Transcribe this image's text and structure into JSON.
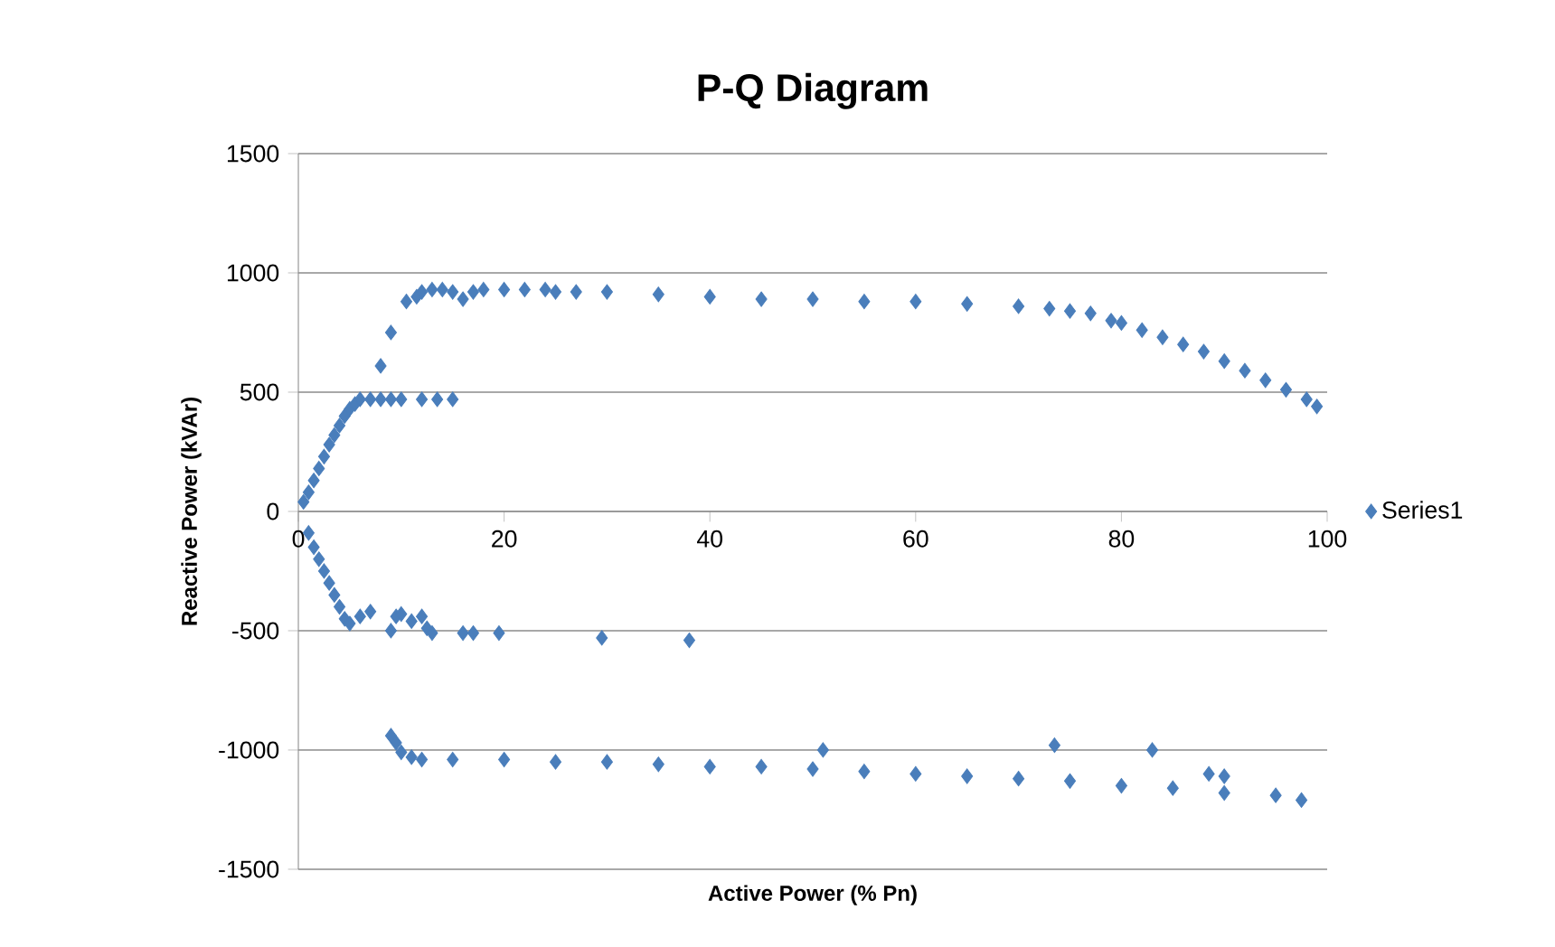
{
  "chart_data": {
    "type": "scatter",
    "title": "P-Q Diagram",
    "xlabel": "Active Power (% Pn)",
    "ylabel": "Reactive Power (kVAr)",
    "xlim": [
      0,
      100
    ],
    "ylim": [
      -1500,
      1500
    ],
    "xticks": [
      0,
      20,
      40,
      60,
      80,
      100
    ],
    "yticks": [
      -1500,
      -1000,
      -500,
      0,
      500,
      1000,
      1500
    ],
    "grid": "y",
    "legend": "right",
    "marker": "diamond",
    "series": [
      {
        "name": "Series1",
        "color": "#4a7ebb",
        "x": [
          0.5,
          1,
          1.5,
          2,
          2.5,
          3,
          3.5,
          4,
          4.5,
          5,
          5.5,
          6,
          7,
          8,
          9,
          10,
          12,
          13.5,
          15,
          8,
          9,
          10.5,
          11.5,
          12,
          13,
          14,
          15,
          16,
          17,
          18,
          20,
          22,
          24,
          25,
          27,
          30,
          35,
          40,
          45,
          50,
          55,
          60,
          65,
          70,
          73,
          75,
          77,
          79,
          80,
          82,
          84,
          86,
          88,
          90,
          92,
          94,
          96,
          98,
          99,
          1,
          1.5,
          2,
          2.5,
          3,
          3.5,
          4,
          4.5,
          5,
          6,
          7,
          9,
          9.5,
          10,
          11,
          12,
          12.5,
          13,
          16,
          17,
          19.5,
          29.5,
          38,
          9,
          9.5,
          10,
          11,
          12,
          15,
          20,
          25,
          30,
          35,
          40,
          45,
          50,
          51,
          55,
          60,
          65,
          70,
          73.5,
          75,
          80,
          83,
          85,
          88.5,
          90,
          90,
          95,
          97.5
        ],
        "values": [
          40,
          80,
          130,
          180,
          230,
          280,
          320,
          360,
          400,
          430,
          450,
          470,
          470,
          470,
          470,
          470,
          470,
          470,
          470,
          610,
          750,
          880,
          900,
          920,
          930,
          930,
          920,
          890,
          920,
          930,
          930,
          930,
          930,
          920,
          920,
          920,
          910,
          900,
          890,
          890,
          880,
          880,
          870,
          860,
          850,
          840,
          830,
          800,
          790,
          760,
          730,
          700,
          670,
          630,
          590,
          550,
          510,
          470,
          440,
          -90,
          -150,
          -200,
          -250,
          -300,
          -350,
          -400,
          -450,
          -470,
          -440,
          -420,
          -500,
          -440,
          -430,
          -460,
          -440,
          -490,
          -510,
          -510,
          -510,
          -510,
          -530,
          -540,
          -940,
          -970,
          -1010,
          -1030,
          -1040,
          -1040,
          -1040,
          -1050,
          -1050,
          -1060,
          -1070,
          -1070,
          -1080,
          -1000,
          -1090,
          -1100,
          -1110,
          -1120,
          -980,
          -1130,
          -1150,
          -1000,
          -1160,
          -1100,
          -1110,
          -1180,
          -1190,
          -1210
        ]
      }
    ]
  }
}
